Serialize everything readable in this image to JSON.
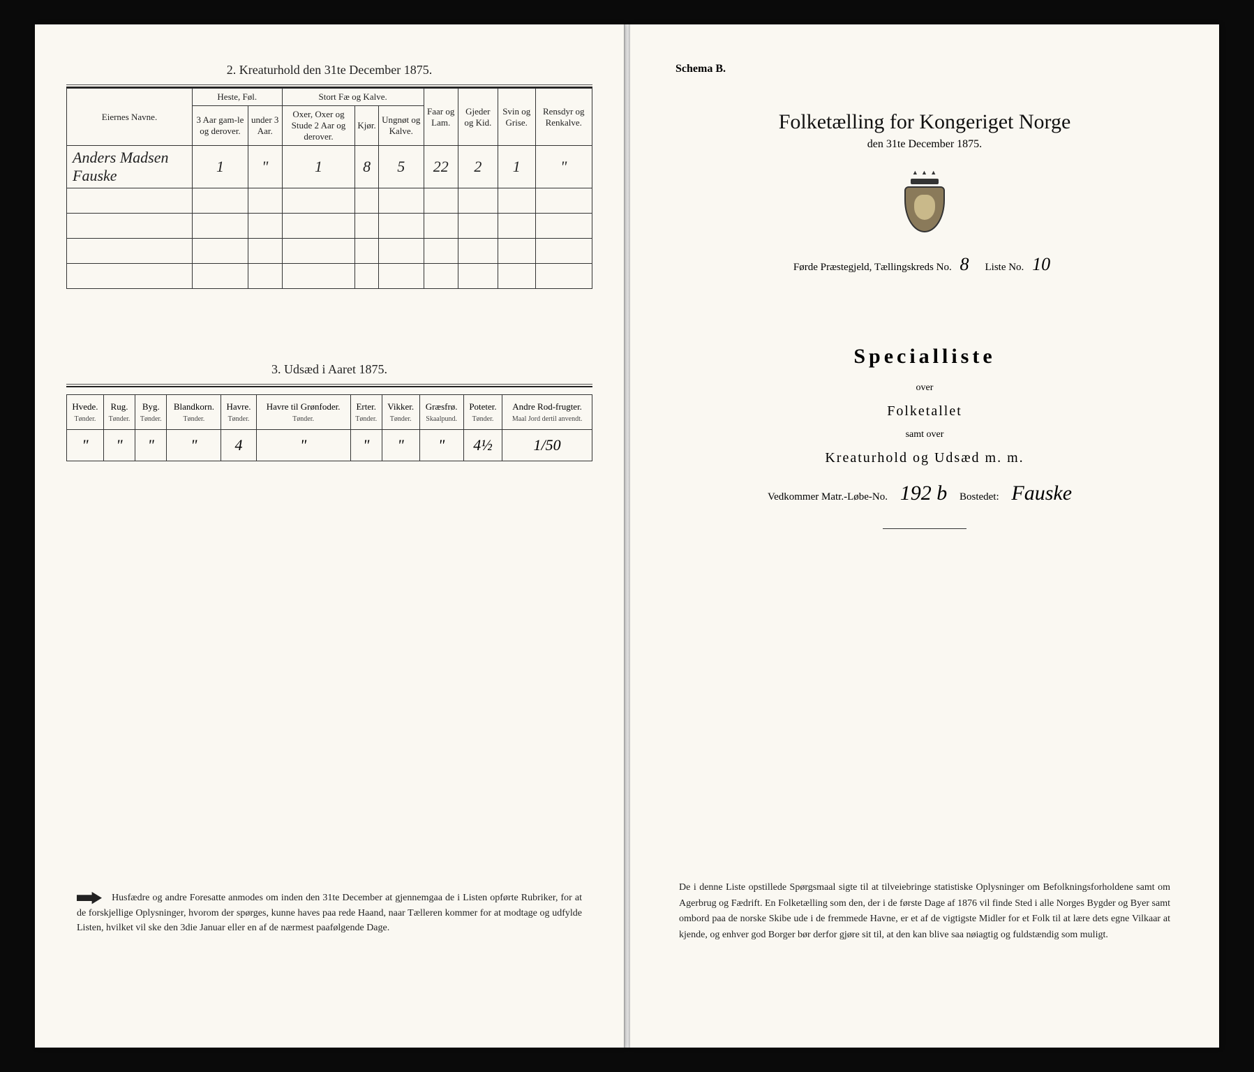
{
  "left": {
    "table2": {
      "title": "2.   Kreaturhold den 31te December 1875.",
      "headers_top": {
        "name": "Eiernes Navne.",
        "horses": "Heste, Føl.",
        "cattle": "Stort Fæ og Kalve.",
        "sheep": "Faar og Lam.",
        "goats": "Gjeder og Kid.",
        "pigs": "Svin og Grise.",
        "reindeer": "Rensdyr og Renkalve."
      },
      "headers_sub": {
        "h1": "3 Aar gam-le og derover.",
        "h2": "under 3 Aar.",
        "c1": "Oxer, Oxer og Stude 2 Aar og derover.",
        "c2": "Kjør.",
        "c3": "Ungnøt og Kalve."
      },
      "row": {
        "name": "Anders Madsen Fauske",
        "v1": "1",
        "v2": "\"",
        "v3": "1",
        "v4": "8",
        "v5": "5",
        "v6": "22",
        "v7": "2",
        "v8": "1",
        "v9": "\""
      }
    },
    "table3": {
      "title": "3.   Udsæd i Aaret 1875.",
      "cols": [
        {
          "h": "Hvede.",
          "u": "Tønder."
        },
        {
          "h": "Rug.",
          "u": "Tønder."
        },
        {
          "h": "Byg.",
          "u": "Tønder."
        },
        {
          "h": "Blandkorn.",
          "u": "Tønder."
        },
        {
          "h": "Havre.",
          "u": "Tønder."
        },
        {
          "h": "Havre til Grønfoder.",
          "u": "Tønder."
        },
        {
          "h": "Erter.",
          "u": "Tønder."
        },
        {
          "h": "Vikker.",
          "u": "Tønder."
        },
        {
          "h": "Græsfrø.",
          "u": "Skaalpund."
        },
        {
          "h": "Poteter.",
          "u": "Tønder."
        },
        {
          "h": "Andre Rod-frugter.",
          "u": "Maal Jord dertil anvendt."
        }
      ],
      "values": [
        "\"",
        "\"",
        "\"",
        "\"",
        "4",
        "\"",
        "\"",
        "\"",
        "\"",
        "4½",
        "1/50"
      ]
    },
    "footer": "Husfædre og andre Foresatte anmodes om inden den 31te December at gjennemgaa de i Listen opførte Rubriker, for at de forskjellige Oplysninger, hvorom der spørges, kunne haves paa rede Haand, naar Tælleren kommer for at modtage og udfylde Listen, hvilket vil ske den 3die Januar eller en af de nærmest paafølgende Dage."
  },
  "right": {
    "schema": "Schema B.",
    "title": "Folketælling for Kongeriget Norge",
    "subtitle": "den 31te December 1875.",
    "district_prefix": "Førde Præstegjeld,  Tællingskreds No.",
    "district_no": "8",
    "liste_label": "Liste No.",
    "liste_no": "10",
    "specialliste": "Specialliste",
    "over": "over",
    "folketallet": "Folketallet",
    "samt": "samt over",
    "kreatur": "Kreaturhold og Udsæd m. m.",
    "matr_prefix": "Vedkommer Matr.-Løbe-No.",
    "matr_no": "192 b",
    "bosted_label": "Bostedet:",
    "bosted": "Fauske",
    "footer": "De i denne Liste opstillede Spørgsmaal sigte til at tilveiebringe statistiske Oplysninger om Befolkningsforholdene samt om Agerbrug og Fædrift.  En Folketælling som den, der i de første Dage af 1876 vil finde Sted i alle Norges Bygder og Byer samt ombord paa de norske Skibe ude i de fremmede Havne, er et af de vigtigste Midler for et Folk til at lære dets egne Vilkaar at kjende, og enhver god Borger bør derfor gjøre sit til, at den kan blive saa nøiagtig og fuldstændig som muligt."
  }
}
